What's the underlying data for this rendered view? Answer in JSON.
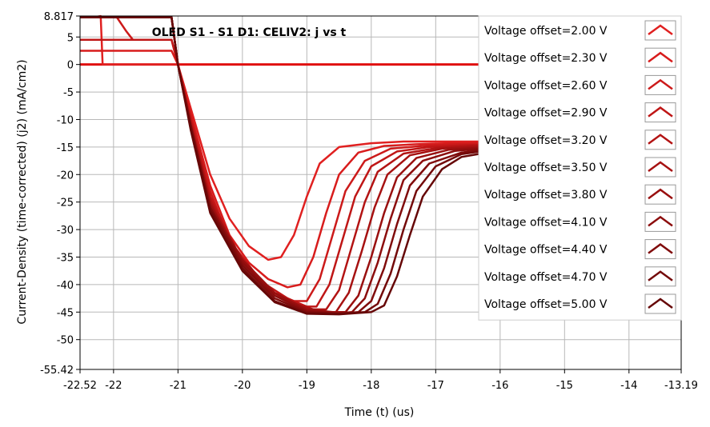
{
  "chart_data": {
    "type": "line",
    "title": "OLED S1 - S1 D1: CELIV2: j vs t",
    "xlabel": "Time (t) (us)",
    "ylabel": "Current-Density (time-corrected) (j2) (mA/cm2)",
    "xlim": [
      -22.52,
      -13.19
    ],
    "ylim": [
      8.817,
      -55.42
    ],
    "y_inverted": true,
    "grid": true,
    "legend_position": "right",
    "x_ticks": [
      "-22.52",
      "-22",
      "-21",
      "-20",
      "-19",
      "-18",
      "-17",
      "-16",
      "-15",
      "-14",
      "-13.19"
    ],
    "x_tick_values": [
      -22.52,
      -22,
      -21,
      -20,
      -19,
      -18,
      -17,
      -16,
      -15,
      -14,
      -13.19
    ],
    "y_ticks": [
      "-55.42",
      "-50",
      "-45",
      "-40",
      "-35",
      "-30",
      "-25",
      "-20",
      "-15",
      "-10",
      "-5",
      "0",
      "5",
      "8.817"
    ],
    "y_tick_values": [
      -55.42,
      -50,
      -45,
      -40,
      -35,
      -30,
      -25,
      -20,
      -15,
      -10,
      -5,
      0,
      5,
      8.817
    ],
    "zero_series": {
      "y": 0,
      "color": "#e01010"
    },
    "series": [
      {
        "name": "Voltage offset=2.00 V",
        "color": "#e02020",
        "points": [
          [
            -22.52,
            8.6
          ],
          [
            -22.3,
            8.6
          ],
          [
            -22.2,
            8.8
          ],
          [
            -22.17,
            0
          ],
          [
            -21.1,
            0
          ],
          [
            -21.0,
            0
          ],
          [
            -20.8,
            -8
          ],
          [
            -20.5,
            -20
          ],
          [
            -20.2,
            -28
          ],
          [
            -19.9,
            -33
          ],
          [
            -19.6,
            -35.5
          ],
          [
            -19.4,
            -35
          ],
          [
            -19.2,
            -31
          ],
          [
            -19.0,
            -24
          ],
          [
            -18.8,
            -18
          ],
          [
            -18.5,
            -15
          ],
          [
            -18.0,
            -14.3
          ],
          [
            -17.5,
            -14
          ],
          [
            -16.8,
            -14
          ],
          [
            -16.3,
            -14
          ]
        ]
      },
      {
        "name": "Voltage offset=2.30 V",
        "color": "#d81c1c",
        "points": [
          [
            -22.52,
            2.5
          ],
          [
            -21.3,
            2.5
          ],
          [
            -21.1,
            2.5
          ],
          [
            -21.0,
            0
          ],
          [
            -20.8,
            -9
          ],
          [
            -20.5,
            -22
          ],
          [
            -20.2,
            -31
          ],
          [
            -19.9,
            -36
          ],
          [
            -19.6,
            -39
          ],
          [
            -19.3,
            -40.5
          ],
          [
            -19.1,
            -40
          ],
          [
            -18.9,
            -35
          ],
          [
            -18.7,
            -27
          ],
          [
            -18.5,
            -20
          ],
          [
            -18.2,
            -16
          ],
          [
            -17.8,
            -14.8
          ],
          [
            -17.3,
            -14.5
          ],
          [
            -16.8,
            -14.3
          ],
          [
            -16.3,
            -14.2
          ]
        ]
      },
      {
        "name": "Voltage offset=2.60 V",
        "color": "#cc1a1a",
        "points": [
          [
            -22.52,
            8.6
          ],
          [
            -21.95,
            8.6
          ],
          [
            -21.8,
            6
          ],
          [
            -21.7,
            4.5
          ],
          [
            -21.1,
            4.5
          ],
          [
            -21.0,
            0
          ],
          [
            -20.8,
            -9.5
          ],
          [
            -20.5,
            -23
          ],
          [
            -20.2,
            -32
          ],
          [
            -19.8,
            -38
          ],
          [
            -19.5,
            -41.5
          ],
          [
            -19.2,
            -43
          ],
          [
            -19.0,
            -43
          ],
          [
            -18.8,
            -39
          ],
          [
            -18.6,
            -31
          ],
          [
            -18.4,
            -23
          ],
          [
            -18.1,
            -17.5
          ],
          [
            -17.7,
            -15.3
          ],
          [
            -17.2,
            -14.8
          ],
          [
            -16.7,
            -14.5
          ],
          [
            -16.3,
            -14.4
          ]
        ]
      },
      {
        "name": "Voltage offset=2.90 V",
        "color": "#bf1616",
        "points": [
          [
            -22.52,
            4.5
          ],
          [
            -21.1,
            4.5
          ],
          [
            -21.0,
            0
          ],
          [
            -20.8,
            -10
          ],
          [
            -20.5,
            -24
          ],
          [
            -20.1,
            -33.5
          ],
          [
            -19.7,
            -39.5
          ],
          [
            -19.3,
            -42.5
          ],
          [
            -19.0,
            -44
          ],
          [
            -18.85,
            -44
          ],
          [
            -18.65,
            -40
          ],
          [
            -18.45,
            -32
          ],
          [
            -18.25,
            -24
          ],
          [
            -18.0,
            -18.5
          ],
          [
            -17.6,
            -15.8
          ],
          [
            -17.1,
            -15
          ],
          [
            -16.6,
            -14.7
          ],
          [
            -16.3,
            -14.6
          ]
        ]
      },
      {
        "name": "Voltage offset=3.20 V",
        "color": "#b31313",
        "points": [
          [
            -22.52,
            8.6
          ],
          [
            -21.1,
            8.6
          ],
          [
            -21.0,
            0
          ],
          [
            -20.8,
            -10.5
          ],
          [
            -20.5,
            -24.5
          ],
          [
            -20.1,
            -34
          ],
          [
            -19.7,
            -40
          ],
          [
            -19.3,
            -43
          ],
          [
            -18.9,
            -44.5
          ],
          [
            -18.7,
            -44.5
          ],
          [
            -18.5,
            -41
          ],
          [
            -18.3,
            -33
          ],
          [
            -18.1,
            -25
          ],
          [
            -17.9,
            -19.5
          ],
          [
            -17.5,
            -16.2
          ],
          [
            -17.0,
            -15.2
          ],
          [
            -16.5,
            -14.8
          ],
          [
            -16.3,
            -14.7
          ]
        ]
      },
      {
        "name": "Voltage offset=3.50 V",
        "color": "#a61111",
        "points": [
          [
            -22.52,
            8.6
          ],
          [
            -21.1,
            8.6
          ],
          [
            -21.0,
            0
          ],
          [
            -20.8,
            -11
          ],
          [
            -20.5,
            -25
          ],
          [
            -20.1,
            -34.5
          ],
          [
            -19.6,
            -41
          ],
          [
            -19.1,
            -44
          ],
          [
            -18.7,
            -45
          ],
          [
            -18.55,
            -45
          ],
          [
            -18.35,
            -41.5
          ],
          [
            -18.15,
            -34
          ],
          [
            -17.95,
            -26
          ],
          [
            -17.75,
            -20
          ],
          [
            -17.4,
            -16.5
          ],
          [
            -16.9,
            -15.3
          ],
          [
            -16.3,
            -14.9
          ]
        ]
      },
      {
        "name": "Voltage offset=3.80 V",
        "color": "#990f0f",
        "points": [
          [
            -22.52,
            8.6
          ],
          [
            -21.1,
            8.6
          ],
          [
            -21.0,
            0
          ],
          [
            -20.8,
            -11
          ],
          [
            -20.5,
            -25.5
          ],
          [
            -20.0,
            -35.5
          ],
          [
            -19.5,
            -41.5
          ],
          [
            -19.0,
            -44.5
          ],
          [
            -18.6,
            -45
          ],
          [
            -18.4,
            -45
          ],
          [
            -18.2,
            -42
          ],
          [
            -18.0,
            -35
          ],
          [
            -17.8,
            -27
          ],
          [
            -17.6,
            -20.5
          ],
          [
            -17.3,
            -17
          ],
          [
            -16.8,
            -15.5
          ],
          [
            -16.3,
            -15.1
          ]
        ]
      },
      {
        "name": "Voltage offset=4.10 V",
        "color": "#8c0d0d",
        "points": [
          [
            -22.52,
            8.6
          ],
          [
            -21.1,
            8.6
          ],
          [
            -21.0,
            0
          ],
          [
            -20.8,
            -11
          ],
          [
            -20.5,
            -26
          ],
          [
            -20.0,
            -36
          ],
          [
            -19.5,
            -42
          ],
          [
            -19.0,
            -44.8
          ],
          [
            -18.5,
            -45.2
          ],
          [
            -18.3,
            -45
          ],
          [
            -18.1,
            -42.5
          ],
          [
            -17.9,
            -36
          ],
          [
            -17.7,
            -28
          ],
          [
            -17.5,
            -21
          ],
          [
            -17.2,
            -17.5
          ],
          [
            -16.7,
            -15.7
          ],
          [
            -16.3,
            -15.3
          ]
        ]
      },
      {
        "name": "Voltage offset=4.40 V",
        "color": "#800b0b",
        "points": [
          [
            -22.52,
            8.6
          ],
          [
            -21.1,
            8.6
          ],
          [
            -21.0,
            0
          ],
          [
            -20.8,
            -11.5
          ],
          [
            -20.5,
            -26
          ],
          [
            -20.0,
            -36.5
          ],
          [
            -19.5,
            -42.5
          ],
          [
            -19.0,
            -45
          ],
          [
            -18.5,
            -45.3
          ],
          [
            -18.2,
            -45
          ],
          [
            -18.0,
            -43
          ],
          [
            -17.8,
            -37
          ],
          [
            -17.6,
            -29
          ],
          [
            -17.4,
            -22
          ],
          [
            -17.1,
            -18
          ],
          [
            -16.6,
            -16
          ],
          [
            -16.3,
            -15.5
          ]
        ]
      },
      {
        "name": "Voltage offset=4.70 V",
        "color": "#730909",
        "points": [
          [
            -22.52,
            8.6
          ],
          [
            -21.1,
            8.6
          ],
          [
            -21.0,
            0
          ],
          [
            -20.8,
            -11.5
          ],
          [
            -20.5,
            -26.5
          ],
          [
            -20.0,
            -37
          ],
          [
            -19.5,
            -43
          ],
          [
            -19.0,
            -45.2
          ],
          [
            -18.5,
            -45.3
          ],
          [
            -18.1,
            -45
          ],
          [
            -17.9,
            -43.5
          ],
          [
            -17.7,
            -38
          ],
          [
            -17.5,
            -30
          ],
          [
            -17.3,
            -23
          ],
          [
            -17.0,
            -18.5
          ],
          [
            -16.6,
            -16.3
          ],
          [
            -16.3,
            -15.8
          ]
        ]
      },
      {
        "name": "Voltage offset=5.00 V",
        "color": "#660707",
        "points": [
          [
            -22.52,
            8.6
          ],
          [
            -21.1,
            8.6
          ],
          [
            -21.0,
            0
          ],
          [
            -20.8,
            -12
          ],
          [
            -20.5,
            -27
          ],
          [
            -20.0,
            -37.5
          ],
          [
            -19.5,
            -43.2
          ],
          [
            -19.0,
            -45.3
          ],
          [
            -18.5,
            -45.4
          ],
          [
            -18.0,
            -45
          ],
          [
            -17.8,
            -43.8
          ],
          [
            -17.6,
            -38.5
          ],
          [
            -17.4,
            -31
          ],
          [
            -17.2,
            -24
          ],
          [
            -16.9,
            -19
          ],
          [
            -16.6,
            -16.8
          ],
          [
            -16.3,
            -16.2
          ]
        ]
      }
    ]
  }
}
